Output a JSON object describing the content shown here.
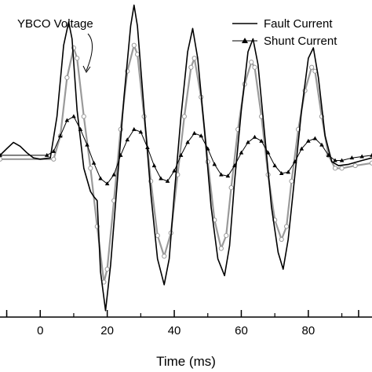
{
  "chart_data": {
    "type": "line",
    "xlabel": "Time (ms)",
    "ylabel": "",
    "title": "",
    "xlim": [
      -12,
      99
    ],
    "ylim": [
      -1.25,
      1.2
    ],
    "x_ticks": [
      0,
      20,
      40,
      60,
      80
    ],
    "grid": false,
    "legend_position": "top-right",
    "annotation": "YBCO Voltage",
    "legend": [
      "Fault Current",
      "Shunt Current"
    ],
    "series": [
      {
        "name": "Fault Current",
        "color": "#000000",
        "style": "solid",
        "points": [
          [
            -12,
            0
          ],
          [
            -10,
            0.05
          ],
          [
            -8,
            0.1
          ],
          [
            -6,
            0.07
          ],
          [
            -4,
            0.02
          ],
          [
            -2,
            -0.02
          ],
          [
            0,
            -0.03
          ],
          [
            3,
            -0.02
          ],
          [
            5,
            0.3
          ],
          [
            7,
            0.85
          ],
          [
            8.5,
            1.03
          ],
          [
            9.5,
            0.9
          ],
          [
            11,
            0.35
          ],
          [
            13,
            -0.1
          ],
          [
            15,
            -0.28
          ],
          [
            16,
            -0.32
          ],
          [
            17,
            -0.35
          ],
          [
            18,
            -0.9
          ],
          [
            19.5,
            -1.2
          ],
          [
            21,
            -0.85
          ],
          [
            23,
            -0.2
          ],
          [
            25,
            0.45
          ],
          [
            27,
            1.0
          ],
          [
            28,
            1.16
          ],
          [
            29,
            1.0
          ],
          [
            31,
            0.35
          ],
          [
            33,
            -0.3
          ],
          [
            35,
            -0.8
          ],
          [
            37,
            -1.0
          ],
          [
            38.5,
            -0.8
          ],
          [
            40,
            -0.3
          ],
          [
            42,
            0.3
          ],
          [
            44,
            0.8
          ],
          [
            45.5,
            0.98
          ],
          [
            47,
            0.75
          ],
          [
            49,
            0.2
          ],
          [
            51,
            -0.4
          ],
          [
            53,
            -0.8
          ],
          [
            55,
            -0.93
          ],
          [
            56.5,
            -0.7
          ],
          [
            58,
            -0.2
          ],
          [
            60,
            0.35
          ],
          [
            62,
            0.8
          ],
          [
            63.5,
            0.9
          ],
          [
            65,
            0.7
          ],
          [
            67,
            0.15
          ],
          [
            69,
            -0.4
          ],
          [
            71,
            -0.75
          ],
          [
            72.5,
            -0.88
          ],
          [
            74,
            -0.65
          ],
          [
            76,
            -0.15
          ],
          [
            78,
            0.35
          ],
          [
            80,
            0.75
          ],
          [
            81.5,
            0.83
          ],
          [
            83,
            0.6
          ],
          [
            85,
            0.15
          ],
          [
            87,
            -0.05
          ],
          [
            89,
            -0.08
          ],
          [
            92,
            -0.07
          ],
          [
            96,
            -0.04
          ],
          [
            99,
            -0.02
          ]
        ]
      },
      {
        "name": "Shunt Current",
        "color": "#000000",
        "style": "triangle-markers",
        "points": [
          [
            -12,
            0
          ],
          [
            2,
            0
          ],
          [
            4,
            0.03
          ],
          [
            6,
            0.15
          ],
          [
            8,
            0.27
          ],
          [
            10,
            0.3
          ],
          [
            12,
            0.2
          ],
          [
            14,
            0.08
          ],
          [
            16,
            -0.06
          ],
          [
            18,
            -0.18
          ],
          [
            20,
            -0.22
          ],
          [
            22,
            -0.15
          ],
          [
            24,
            0.0
          ],
          [
            26,
            0.12
          ],
          [
            28,
            0.2
          ],
          [
            30,
            0.18
          ],
          [
            32,
            0.06
          ],
          [
            34,
            -0.08
          ],
          [
            36,
            -0.18
          ],
          [
            38,
            -0.2
          ],
          [
            40,
            -0.12
          ],
          [
            42,
            0.0
          ],
          [
            44,
            0.1
          ],
          [
            46,
            0.17
          ],
          [
            48,
            0.15
          ],
          [
            50,
            0.05
          ],
          [
            52,
            -0.07
          ],
          [
            54,
            -0.15
          ],
          [
            56,
            -0.16
          ],
          [
            58,
            -0.08
          ],
          [
            60,
            0.02
          ],
          [
            62,
            0.1
          ],
          [
            64,
            0.14
          ],
          [
            66,
            0.11
          ],
          [
            68,
            0.02
          ],
          [
            70,
            -0.08
          ],
          [
            72,
            -0.14
          ],
          [
            74,
            -0.13
          ],
          [
            76,
            -0.05
          ],
          [
            78,
            0.05
          ],
          [
            80,
            0.11
          ],
          [
            82,
            0.13
          ],
          [
            84,
            0.08
          ],
          [
            86,
            0.0
          ],
          [
            88,
            -0.04
          ],
          [
            90,
            -0.04
          ],
          [
            93,
            -0.02
          ],
          [
            96,
            -0.01
          ],
          [
            99,
            0
          ]
        ]
      },
      {
        "name": "YBCO Voltage",
        "color": "#9a9a9a",
        "style": "open-circle-markers",
        "points": [
          [
            -12,
            -0.03
          ],
          [
            4,
            -0.03
          ],
          [
            6,
            0.15
          ],
          [
            8,
            0.6
          ],
          [
            10,
            0.83
          ],
          [
            11,
            0.75
          ],
          [
            13,
            0.3
          ],
          [
            15,
            -0.1
          ],
          [
            17,
            -0.55
          ],
          [
            19,
            -0.98
          ],
          [
            20,
            -0.88
          ],
          [
            22,
            -0.35
          ],
          [
            24,
            0.2
          ],
          [
            26,
            0.65
          ],
          [
            28,
            0.85
          ],
          [
            29,
            0.78
          ],
          [
            31,
            0.3
          ],
          [
            33,
            -0.2
          ],
          [
            35,
            -0.62
          ],
          [
            37,
            -0.78
          ],
          [
            39,
            -0.6
          ],
          [
            41,
            -0.15
          ],
          [
            43,
            0.3
          ],
          [
            45,
            0.68
          ],
          [
            46,
            0.75
          ],
          [
            48,
            0.45
          ],
          [
            50,
            -0.05
          ],
          [
            52,
            -0.5
          ],
          [
            54,
            -0.72
          ],
          [
            55.5,
            -0.62
          ],
          [
            57,
            -0.25
          ],
          [
            59,
            0.2
          ],
          [
            61,
            0.55
          ],
          [
            63,
            0.72
          ],
          [
            64,
            0.68
          ],
          [
            66,
            0.3
          ],
          [
            68,
            -0.15
          ],
          [
            70,
            -0.5
          ],
          [
            72,
            -0.65
          ],
          [
            73.5,
            -0.55
          ],
          [
            75,
            -0.2
          ],
          [
            77,
            0.2
          ],
          [
            79,
            0.5
          ],
          [
            81,
            0.68
          ],
          [
            82,
            0.65
          ],
          [
            84,
            0.3
          ],
          [
            86,
            0.0
          ],
          [
            88,
            -0.1
          ],
          [
            90,
            -0.1
          ],
          [
            94,
            -0.08
          ],
          [
            99,
            -0.06
          ]
        ]
      }
    ]
  }
}
